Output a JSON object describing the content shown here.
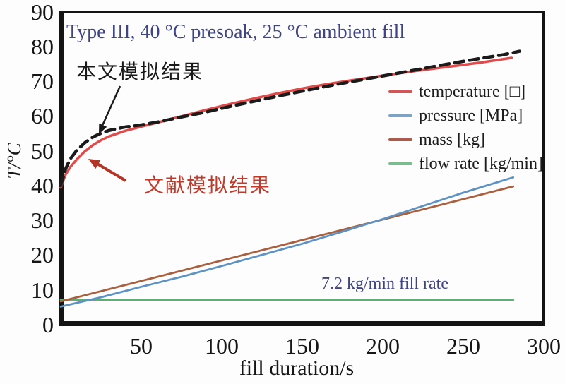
{
  "figure": {
    "title_annotation": "Type III, 40 °C presoak, 25 °C ambient fill",
    "paper_sim_label": "本文模拟结果",
    "literature_sim_label": "文献模拟结果",
    "fill_rate_label": "7.2 kg/min fill rate",
    "accent_navy": "#3f4486",
    "accent_red_text": "#c13a2a"
  },
  "chart_data": {
    "type": "line",
    "title": "Type III, 40 °C presoak, 25 °C ambient fill",
    "xlabel": "fill duration/s",
    "ylabel": "T/°C",
    "xlim": [
      0,
      300
    ],
    "ylim": [
      0,
      90
    ],
    "grid": false,
    "legend_position": "upper right inside",
    "xtick_labels": [
      "50",
      "100",
      "150",
      "200",
      "250",
      "300"
    ],
    "xtick_values": [
      50,
      100,
      150,
      200,
      250,
      300
    ],
    "ytick_labels": [
      "90",
      "80",
      "70",
      "60",
      "50",
      "40",
      "30",
      "20",
      "10",
      "0"
    ],
    "ytick_values": [
      90,
      80,
      70,
      60,
      50,
      40,
      30,
      20,
      10,
      0
    ],
    "legend": [
      {
        "label": "temperature [□]",
        "color": "#d95454"
      },
      {
        "label": "pressure [MPa]",
        "color": "#7aa3c6"
      },
      {
        "label": "mass [kg]",
        "color": "#ad5a4a"
      },
      {
        "label": "flow rate [kg/min]",
        "color": "#79bf8e"
      }
    ],
    "annotations": [
      {
        "text": "本文模拟结果",
        "points_to": "dashed black curve (this paper simulation)"
      },
      {
        "text": "文献模拟结果",
        "points_to": "solid red curve (literature simulation)"
      },
      {
        "text": "7.2 kg/min fill rate",
        "points_to": "green flow-rate line"
      }
    ],
    "series": [
      {
        "id": "flow-rate",
        "name": "flow rate [kg/min]",
        "color": "#57b273",
        "width": 2.8,
        "dash": null,
        "x": [
          0,
          281
        ],
        "y": [
          7.2,
          7.2
        ]
      },
      {
        "id": "mass",
        "name": "mass [kg]",
        "color": "#a8603f",
        "width": 2.8,
        "dash": null,
        "x": [
          0,
          281
        ],
        "y": [
          6.7,
          39.8
        ]
      },
      {
        "id": "pressure",
        "name": "pressure [MPa]",
        "color": "#5d92c2",
        "width": 2.8,
        "dash": null,
        "x": [
          0,
          25,
          50,
          75,
          100,
          125,
          150,
          175,
          200,
          225,
          250,
          281
        ],
        "y": [
          5.2,
          7.9,
          10.9,
          13.8,
          16.9,
          20.1,
          23.3,
          26.8,
          30.4,
          34.2,
          38.0,
          42.4
        ]
      },
      {
        "id": "temperature-literature",
        "name": "temperature, literature simulation [°C]",
        "color": "#e04b4b",
        "width": 3.5,
        "dash": null,
        "x": [
          0,
          3,
          6,
          10,
          15,
          20,
          25,
          30,
          40,
          50,
          62,
          75,
          90,
          105,
          120,
          135,
          150,
          165,
          180,
          200,
          220,
          240,
          260,
          280
        ],
        "y": [
          39.5,
          43.2,
          45.4,
          47.6,
          49.9,
          51.7,
          53.1,
          54.2,
          55.8,
          57.0,
          58.4,
          60.0,
          61.8,
          63.5,
          65.1,
          66.6,
          68.0,
          69.2,
          70.3,
          71.7,
          73.0,
          74.2,
          75.4,
          76.8
        ]
      },
      {
        "id": "temperature-paper",
        "name": "temperature, this paper simulation [°C]",
        "color": "#1b1b1b",
        "width": 4.5,
        "dash": "13 8",
        "x": [
          0,
          3,
          6,
          10,
          15,
          20,
          25,
          30,
          40,
          50,
          62,
          75,
          90,
          105,
          120,
          135,
          150,
          165,
          180,
          200,
          220,
          240,
          260,
          275,
          285
        ],
        "y": [
          40.0,
          44.8,
          47.8,
          50.2,
          52.4,
          54.0,
          55.1,
          55.9,
          56.9,
          57.5,
          58.5,
          59.8,
          61.2,
          62.8,
          64.3,
          65.8,
          67.2,
          68.6,
          69.9,
          71.6,
          73.3,
          75.0,
          76.6,
          77.7,
          78.7
        ]
      }
    ]
  }
}
